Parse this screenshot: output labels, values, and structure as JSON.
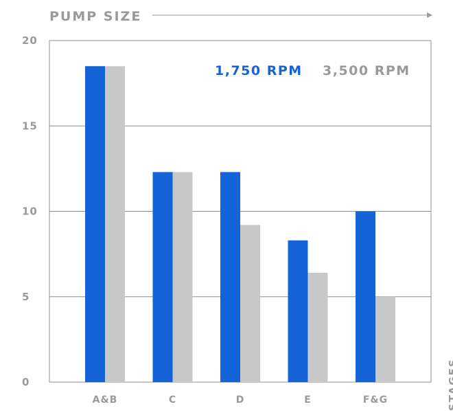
{
  "chart_data": {
    "type": "bar",
    "title": "PUMP SIZE",
    "ylabel": "STAGES",
    "xlabel": "",
    "categories": [
      "A&B",
      "C",
      "D",
      "E",
      "F&G"
    ],
    "series": [
      {
        "name": "1,750 RPM",
        "color": "#1464d8",
        "values": [
          18.5,
          12.3,
          12.3,
          8.3,
          10.0
        ]
      },
      {
        "name": "3,500 RPM",
        "color": "#c8c8c8",
        "values": [
          18.5,
          12.3,
          9.2,
          6.4,
          5.0
        ]
      }
    ],
    "ylim": [
      0,
      20
    ],
    "yticks": [
      "0",
      "5",
      "10",
      "15",
      "20"
    ],
    "grid": true,
    "legend_position": "top-right"
  }
}
